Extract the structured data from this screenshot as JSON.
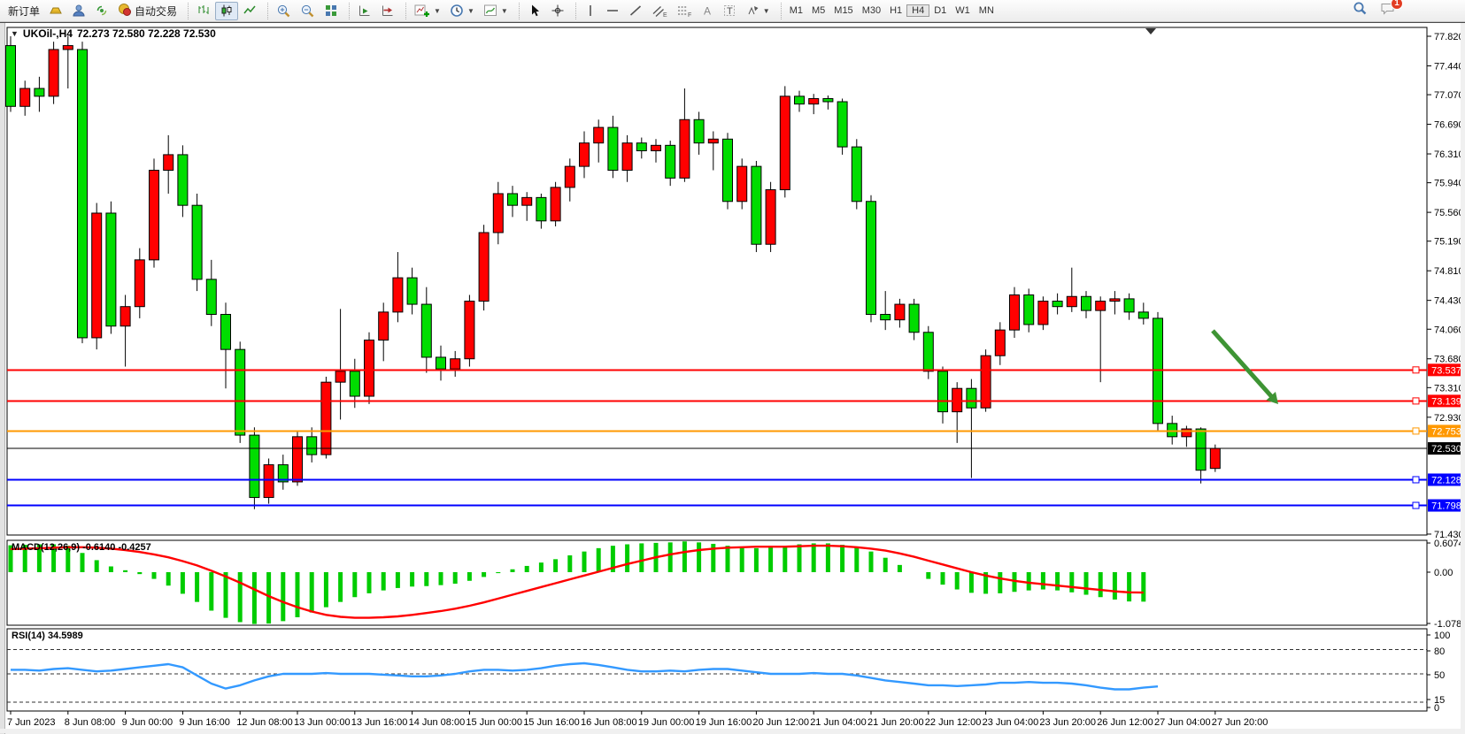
{
  "toolbar": {
    "new_order_label": "新订单",
    "auto_trading_label": "自动交易",
    "timeframes": [
      "M1",
      "M5",
      "M15",
      "M30",
      "H1",
      "H4",
      "D1",
      "W1",
      "MN"
    ],
    "active_timeframe": "H4",
    "notification_count": "1"
  },
  "chart": {
    "symbol_period": "UKOil-,H4",
    "ohlc": "72.273 72.580 72.228 72.530",
    "macd_label": "MACD(12,26,9) -0.6140 -0.4257",
    "rsi_label": "RSI(14) 34.5989"
  },
  "chart_data": {
    "type": "candlestick",
    "symbol": "UKOil-",
    "timeframe": "H4",
    "last_bar": {
      "open": 72.273,
      "high": 72.58,
      "low": 72.228,
      "close": 72.53
    },
    "up_color": "#ff0000",
    "down_color": "#00dd00",
    "price_axis_ticks": [
      "77.820",
      "77.440",
      "77.070",
      "76.690",
      "76.310",
      "75.940",
      "75.560",
      "75.190",
      "74.810",
      "74.430",
      "74.060",
      "73.680",
      "73.310",
      "72.930",
      "71.430"
    ],
    "candles": [
      [
        77.7,
        77.82,
        76.85,
        76.92
      ],
      [
        76.92,
        77.25,
        76.8,
        77.15
      ],
      [
        77.15,
        77.3,
        76.85,
        77.05
      ],
      [
        77.05,
        77.75,
        76.95,
        77.65
      ],
      [
        77.65,
        77.82,
        77.15,
        77.7
      ],
      [
        77.65,
        77.75,
        73.88,
        73.95
      ],
      [
        73.95,
        75.68,
        73.8,
        75.55
      ],
      [
        75.55,
        75.7,
        74.0,
        74.1
      ],
      [
        74.1,
        74.5,
        73.58,
        74.35
      ],
      [
        74.35,
        75.1,
        74.2,
        74.95
      ],
      [
        74.95,
        76.25,
        74.85,
        76.1
      ],
      [
        76.1,
        76.55,
        75.8,
        76.3
      ],
      [
        76.3,
        76.42,
        75.5,
        75.65
      ],
      [
        75.65,
        75.8,
        74.55,
        74.7
      ],
      [
        74.7,
        74.95,
        74.1,
        74.25
      ],
      [
        74.25,
        74.4,
        73.3,
        73.8
      ],
      [
        73.8,
        73.9,
        72.6,
        72.7
      ],
      [
        72.7,
        72.8,
        71.75,
        71.9
      ],
      [
        71.9,
        72.4,
        71.82,
        72.32
      ],
      [
        72.32,
        72.45,
        72.0,
        72.1
      ],
      [
        72.1,
        72.75,
        72.05,
        72.68
      ],
      [
        72.68,
        72.8,
        72.35,
        72.45
      ],
      [
        72.45,
        73.45,
        72.4,
        73.38
      ],
      [
        73.38,
        74.32,
        72.9,
        73.52
      ],
      [
        73.52,
        73.68,
        73.05,
        73.2
      ],
      [
        73.2,
        74.02,
        73.1,
        73.92
      ],
      [
        73.92,
        74.4,
        73.65,
        74.28
      ],
      [
        74.28,
        75.05,
        74.15,
        74.72
      ],
      [
        74.72,
        74.85,
        74.25,
        74.38
      ],
      [
        74.38,
        74.6,
        73.5,
        73.7
      ],
      [
        73.7,
        73.85,
        73.4,
        73.55
      ],
      [
        73.55,
        73.78,
        73.45,
        73.68
      ],
      [
        73.68,
        74.5,
        73.58,
        74.42
      ],
      [
        74.42,
        75.4,
        74.3,
        75.3
      ],
      [
        75.3,
        75.95,
        75.15,
        75.8
      ],
      [
        75.8,
        75.9,
        75.5,
        75.65
      ],
      [
        75.65,
        75.82,
        75.45,
        75.75
      ],
      [
        75.75,
        75.8,
        75.35,
        75.45
      ],
      [
        75.45,
        75.95,
        75.38,
        75.88
      ],
      [
        75.88,
        76.25,
        75.7,
        76.15
      ],
      [
        76.15,
        76.6,
        76.0,
        76.45
      ],
      [
        76.45,
        76.75,
        76.2,
        76.65
      ],
      [
        76.65,
        76.8,
        76.0,
        76.1
      ],
      [
        76.1,
        76.55,
        75.95,
        76.45
      ],
      [
        76.45,
        76.52,
        76.25,
        76.35
      ],
      [
        76.35,
        76.5,
        76.2,
        76.42
      ],
      [
        76.42,
        76.48,
        75.9,
        76.0
      ],
      [
        76.0,
        77.15,
        75.95,
        76.75
      ],
      [
        76.75,
        76.85,
        76.3,
        76.45
      ],
      [
        76.45,
        76.6,
        76.1,
        76.5
      ],
      [
        76.5,
        76.58,
        75.6,
        75.7
      ],
      [
        75.7,
        76.25,
        75.6,
        76.15
      ],
      [
        76.15,
        76.22,
        75.05,
        75.15
      ],
      [
        75.15,
        75.95,
        75.05,
        75.85
      ],
      [
        75.85,
        77.18,
        75.75,
        77.05
      ],
      [
        77.05,
        77.12,
        76.85,
        76.95
      ],
      [
        76.95,
        77.08,
        76.82,
        77.02
      ],
      [
        77.02,
        77.06,
        76.88,
        76.98
      ],
      [
        76.98,
        77.02,
        76.3,
        76.4
      ],
      [
        76.4,
        76.5,
        75.6,
        75.7
      ],
      [
        75.7,
        75.78,
        74.15,
        74.25
      ],
      [
        74.25,
        74.55,
        74.05,
        74.18
      ],
      [
        74.18,
        74.45,
        74.08,
        74.38
      ],
      [
        74.38,
        74.45,
        73.92,
        74.02
      ],
      [
        74.02,
        74.1,
        73.42,
        73.52
      ],
      [
        73.52,
        73.58,
        72.85,
        73.0
      ],
      [
        73.0,
        73.38,
        72.6,
        73.3
      ],
      [
        73.3,
        73.42,
        72.15,
        73.05
      ],
      [
        73.05,
        73.8,
        73.0,
        73.72
      ],
      [
        73.72,
        74.15,
        73.6,
        74.05
      ],
      [
        74.05,
        74.6,
        73.95,
        74.5
      ],
      [
        74.5,
        74.58,
        74.02,
        74.12
      ],
      [
        74.12,
        74.48,
        74.05,
        74.42
      ],
      [
        74.42,
        74.52,
        74.25,
        74.35
      ],
      [
        74.35,
        74.85,
        74.28,
        74.48
      ],
      [
        74.48,
        74.55,
        74.2,
        74.3
      ],
      [
        74.3,
        74.48,
        73.38,
        74.42
      ],
      [
        74.42,
        74.55,
        74.25,
        74.45
      ],
      [
        74.45,
        74.52,
        74.18,
        74.28
      ],
      [
        74.28,
        74.4,
        74.12,
        74.2
      ],
      [
        74.2,
        74.28,
        72.75,
        72.85
      ],
      [
        72.85,
        72.95,
        72.58,
        72.68
      ],
      [
        72.68,
        72.82,
        72.55,
        72.78
      ],
      [
        72.78,
        72.8,
        72.08,
        72.25
      ],
      [
        72.273,
        72.58,
        72.228,
        72.53
      ]
    ],
    "hlines": [
      {
        "price": 73.537,
        "label": "73.537",
        "color": "#ff0000",
        "width": 2
      },
      {
        "price": 73.139,
        "label": "73.139",
        "color": "#ff0000",
        "width": 2
      },
      {
        "price": 72.753,
        "label": "72.753",
        "color": "#ff9800",
        "width": 2
      },
      {
        "price": 72.53,
        "label": "72.530",
        "color": "#000000",
        "width": 1
      },
      {
        "price": 72.128,
        "label": "72.128",
        "color": "#0000ff",
        "width": 2
      },
      {
        "price": 71.798,
        "label": "71.798",
        "color": "#0000ff",
        "width": 2
      }
    ],
    "time_labels": [
      "7 Jun 2023",
      "8 Jun 08:00",
      "9 Jun 00:00",
      "9 Jun 16:00",
      "12 Jun 08:00",
      "13 Jun 00:00",
      "13 Jun 16:00",
      "14 Jun 08:00",
      "15 Jun 00:00",
      "15 Jun 16:00",
      "16 Jun 08:00",
      "19 Jun 00:00",
      "19 Jun 16:00",
      "20 Jun 12:00",
      "21 Jun 04:00",
      "21 Jun 20:00",
      "22 Jun 12:00",
      "23 Jun 04:00",
      "23 Jun 20:00",
      "26 Jun 12:00",
      "27 Jun 04:00",
      "27 Jun 20:00"
    ],
    "macd": {
      "params": "12,26,9",
      "main_value": -0.614,
      "signal_value": -0.4257,
      "axis": [
        "0.6074",
        "0.00",
        "-1.0786"
      ],
      "hist_color": "#00cc00",
      "signal_color": "#ff0000",
      "histogram": [
        0.56,
        0.57,
        0.58,
        0.58,
        0.55,
        0.4,
        0.25,
        0.12,
        0.04,
        -0.04,
        -0.14,
        -0.28,
        -0.45,
        -0.62,
        -0.8,
        -0.95,
        -1.04,
        -1.08,
        -1.07,
        -1.02,
        -0.94,
        -0.84,
        -0.73,
        -0.62,
        -0.52,
        -0.44,
        -0.38,
        -0.33,
        -0.3,
        -0.29,
        -0.27,
        -0.24,
        -0.18,
        -0.1,
        -0.02,
        0.06,
        0.13,
        0.2,
        0.27,
        0.35,
        0.43,
        0.5,
        0.55,
        0.58,
        0.6,
        0.61,
        0.62,
        0.64,
        0.62,
        0.59,
        0.55,
        0.52,
        0.5,
        0.52,
        0.55,
        0.58,
        0.6,
        0.6,
        0.57,
        0.52,
        0.43,
        0.3,
        0.15,
        0.0,
        -0.14,
        -0.26,
        -0.36,
        -0.43,
        -0.45,
        -0.44,
        -0.41,
        -0.38,
        -0.36,
        -0.38,
        -0.42,
        -0.47,
        -0.52,
        -0.57,
        -0.61,
        -0.614
      ],
      "signal": [
        0.48,
        0.49,
        0.5,
        0.51,
        0.52,
        0.52,
        0.51,
        0.49,
        0.46,
        0.42,
        0.37,
        0.31,
        0.23,
        0.14,
        0.03,
        -0.09,
        -0.22,
        -0.36,
        -0.5,
        -0.62,
        -0.73,
        -0.82,
        -0.89,
        -0.93,
        -0.95,
        -0.95,
        -0.94,
        -0.92,
        -0.89,
        -0.85,
        -0.81,
        -0.76,
        -0.7,
        -0.63,
        -0.55,
        -0.47,
        -0.39,
        -0.31,
        -0.23,
        -0.15,
        -0.07,
        0.01,
        0.09,
        0.17,
        0.24,
        0.31,
        0.37,
        0.42,
        0.46,
        0.49,
        0.51,
        0.52,
        0.53,
        0.53,
        0.53,
        0.54,
        0.55,
        0.55,
        0.54,
        0.52,
        0.49,
        0.45,
        0.39,
        0.32,
        0.24,
        0.16,
        0.08,
        0.0,
        -0.07,
        -0.13,
        -0.18,
        -0.22,
        -0.25,
        -0.28,
        -0.31,
        -0.34,
        -0.37,
        -0.4,
        -0.42,
        -0.4257
      ]
    },
    "rsi": {
      "period": "14",
      "value": 34.5989,
      "levels": [
        80,
        50,
        15
      ],
      "axis": [
        "100",
        "80",
        "50",
        "15",
        "0"
      ],
      "color": "#3399ff",
      "values": [
        55,
        55,
        54,
        56,
        57,
        55,
        53,
        54,
        56,
        58,
        60,
        62,
        58,
        48,
        38,
        32,
        36,
        42,
        47,
        50,
        50,
        50,
        51,
        50,
        50,
        50,
        49,
        48,
        47,
        47,
        48,
        50,
        53,
        55,
        55,
        54,
        55,
        57,
        60,
        62,
        63,
        61,
        58,
        55,
        53,
        53,
        54,
        53,
        55,
        56,
        56,
        54,
        52,
        50,
        50,
        50,
        51,
        50,
        50,
        48,
        45,
        42,
        40,
        38,
        36,
        36,
        35,
        36,
        37,
        39,
        39,
        40,
        39,
        39,
        38,
        36,
        33,
        31,
        31,
        33,
        34.6
      ]
    },
    "trend_arrow": {
      "color": "#3e9434"
    }
  }
}
